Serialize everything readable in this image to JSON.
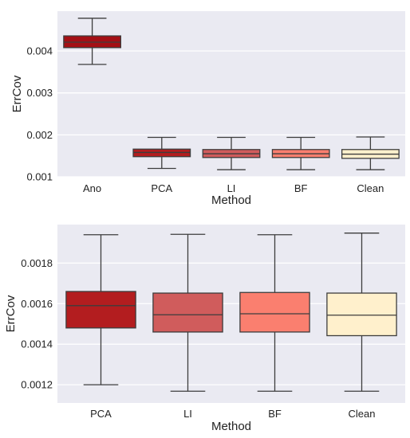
{
  "chart_data": [
    {
      "type": "box",
      "xlabel": "Method",
      "ylabel": "ErrCov",
      "ylim": [
        0.001,
        0.00495
      ],
      "yticks": [
        "0.001",
        "0.002",
        "0.003",
        "0.004"
      ],
      "yticks_values": [
        0.001,
        0.002,
        0.003,
        0.004
      ],
      "grid": true,
      "categories": [
        "Ano",
        "PCA",
        "LI",
        "BF",
        "Clean"
      ],
      "colors": [
        "#a40f15",
        "#b31d1f",
        "#d05c5c",
        "#fa7f6f",
        "#fff0cc"
      ],
      "boxes": [
        {
          "min": 0.00368,
          "q1": 0.00408,
          "median": 0.00421,
          "q3": 0.00436,
          "max": 0.00478
        },
        {
          "min": 0.0012,
          "q1": 0.00148,
          "median": 0.00158,
          "q3": 0.00166,
          "max": 0.00194
        },
        {
          "min": 0.00117,
          "q1": 0.00146,
          "median": 0.00155,
          "q3": 0.00165,
          "max": 0.00194
        },
        {
          "min": 0.00117,
          "q1": 0.00146,
          "median": 0.00155,
          "q3": 0.00165,
          "max": 0.00194
        },
        {
          "min": 0.00117,
          "q1": 0.00144,
          "median": 0.00154,
          "q3": 0.00165,
          "max": 0.00195
        }
      ]
    },
    {
      "type": "box",
      "xlabel": "Method",
      "ylabel": "ErrCov",
      "ylim": [
        0.00111,
        0.00199
      ],
      "yticks": [
        "0.0012",
        "0.0014",
        "0.0016",
        "0.0018"
      ],
      "yticks_values": [
        0.0012,
        0.0014,
        0.0016,
        0.0018
      ],
      "grid": true,
      "categories": [
        "PCA",
        "LI",
        "BF",
        "Clean"
      ],
      "colors": [
        "#b31d1f",
        "#d05c5c",
        "#fa7f6f",
        "#fff0cc"
      ],
      "boxes": [
        {
          "min": 0.0012,
          "q1": 0.00148,
          "median": 0.00159,
          "q3": 0.00166,
          "max": 0.00194
        },
        {
          "min": 0.001168,
          "q1": 0.00146,
          "median": 0.001545,
          "q3": 0.001652,
          "max": 0.001942
        },
        {
          "min": 0.001168,
          "q1": 0.00146,
          "median": 0.00155,
          "q3": 0.001655,
          "max": 0.00194
        },
        {
          "min": 0.001168,
          "q1": 0.001442,
          "median": 0.001543,
          "q3": 0.001652,
          "max": 0.001948
        }
      ]
    }
  ]
}
